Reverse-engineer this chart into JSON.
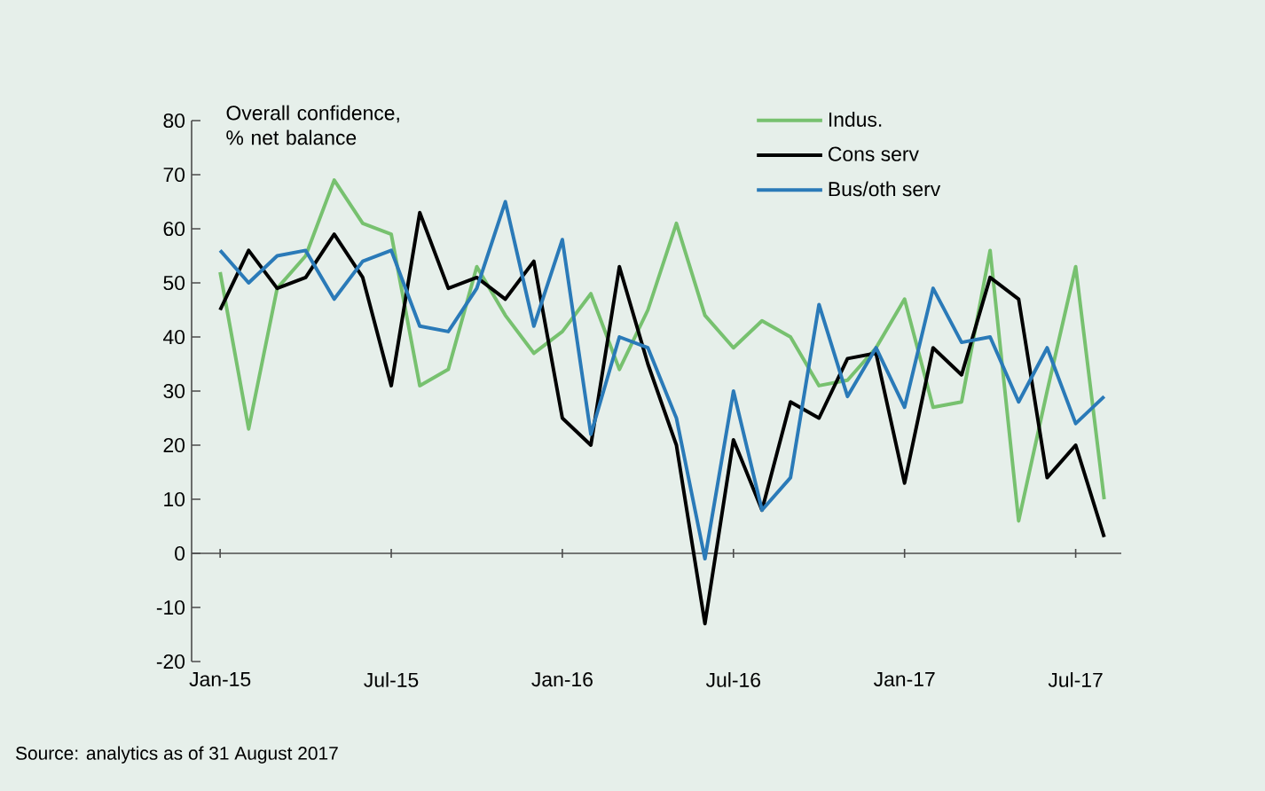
{
  "chart_data": {
    "type": "line",
    "ylabel": "Overall confidence,\n% net balance",
    "categories": [
      "Jan-15",
      null,
      null,
      null,
      null,
      null,
      "Jul-15",
      null,
      null,
      null,
      null,
      null,
      "Jan-16",
      null,
      null,
      null,
      null,
      null,
      "Jul-16",
      null,
      null,
      null,
      null,
      null,
      "Jan-17",
      null,
      null,
      null,
      null,
      null,
      "Jul-17",
      null
    ],
    "series": [
      {
        "name": "Indus.",
        "color": "#77c16f",
        "values": [
          52,
          23,
          49,
          55,
          69,
          61,
          59,
          31,
          34,
          53,
          44,
          37,
          41,
          48,
          34,
          45,
          61,
          44,
          38,
          43,
          40,
          31,
          32,
          38,
          47,
          27,
          28,
          56,
          6,
          30,
          53,
          10
        ]
      },
      {
        "name": "Cons serv",
        "color": "#000000",
        "values": [
          45,
          56,
          49,
          51,
          59,
          51,
          31,
          63,
          49,
          51,
          47,
          54,
          25,
          20,
          53,
          35,
          20,
          -13,
          21,
          8,
          28,
          25,
          36,
          37,
          13,
          38,
          33,
          51,
          47,
          14,
          20,
          3
        ]
      },
      {
        "name": "Bus/oth serv",
        "color": "#2a7ab8",
        "values": [
          56,
          50,
          55,
          56,
          47,
          54,
          56,
          42,
          41,
          49,
          65,
          42,
          58,
          22,
          40,
          38,
          25,
          -1,
          30,
          8,
          14,
          46,
          29,
          38,
          27,
          49,
          39,
          40,
          28,
          38,
          24,
          29
        ]
      }
    ],
    "ylim": [
      -20,
      80
    ],
    "yticks": [
      -20,
      -10,
      0,
      10,
      20,
      30,
      40,
      50,
      60,
      70,
      80
    ],
    "legend": "top right",
    "annotations": [
      "Source: analytics as of 31 August 2017"
    ]
  }
}
